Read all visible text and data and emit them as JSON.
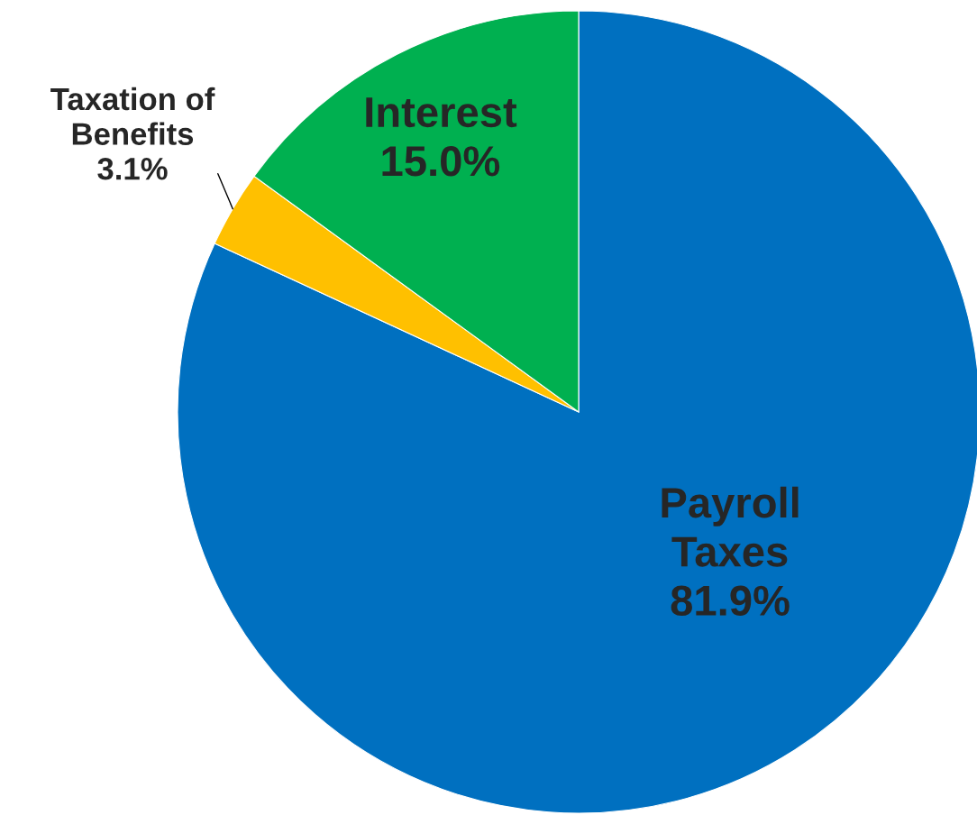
{
  "chart_data": {
    "type": "pie",
    "categories": [
      "Payroll\nTaxes",
      "Taxation of\nBenefits",
      "Interest"
    ],
    "values": [
      81.9,
      3.1,
      15.0
    ],
    "colors": [
      "#0070c0",
      "#ffc000",
      "#00b050"
    ],
    "value_labels": [
      "81.9%",
      "3.1%",
      "15.0%"
    ],
    "legend": false
  }
}
